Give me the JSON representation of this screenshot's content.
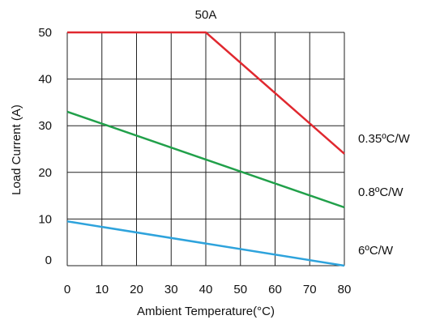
{
  "chart_data": {
    "type": "line",
    "title": "50A",
    "xlabel": "Ambient Temperature(°C)",
    "ylabel": "Load Current (A)",
    "xlim": [
      0,
      80
    ],
    "ylim": [
      0,
      50
    ],
    "xticks": [
      0,
      10,
      20,
      30,
      40,
      50,
      60,
      70,
      80
    ],
    "yticks": [
      0,
      10,
      20,
      30,
      40,
      50
    ],
    "grid": true,
    "series": [
      {
        "name": "0.35ºC/W",
        "color": "#e0282f",
        "points": [
          [
            0,
            50
          ],
          [
            40,
            50
          ],
          [
            80,
            24
          ]
        ]
      },
      {
        "name": "0.8ºC/W",
        "color": "#21a04a",
        "points": [
          [
            0,
            33
          ],
          [
            80,
            12.5
          ]
        ]
      },
      {
        "name": "6ºC/W",
        "color": "#2ea3dc",
        "points": [
          [
            0,
            9.5
          ],
          [
            80,
            0
          ]
        ]
      }
    ]
  }
}
